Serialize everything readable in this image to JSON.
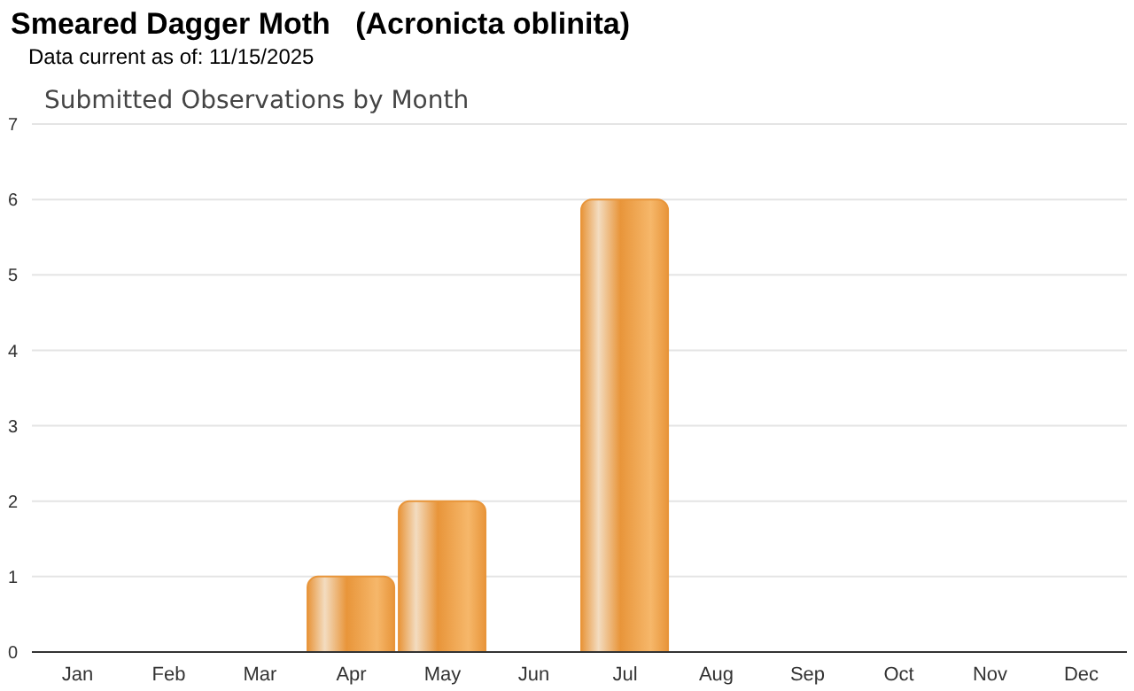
{
  "chart_data": {
    "type": "bar",
    "title": "Smeared Dagger Moth   (Acronicta oblinita)",
    "subtitle": "Data current as of: 11/15/2025",
    "annotations": [
      "Submitted Observations by Month"
    ],
    "categories": [
      "Jan",
      "Feb",
      "Mar",
      "Apr",
      "May",
      "Jun",
      "Jul",
      "Aug",
      "Sep",
      "Oct",
      "Nov",
      "Dec"
    ],
    "values": [
      0,
      0,
      0,
      1,
      2,
      0,
      6,
      0,
      0,
      0,
      0,
      0
    ],
    "color": "#e8953a",
    "ylim": [
      0,
      7
    ],
    "yticks": [
      0,
      1,
      2,
      3,
      4,
      5,
      6,
      7
    ],
    "grid": "y"
  }
}
